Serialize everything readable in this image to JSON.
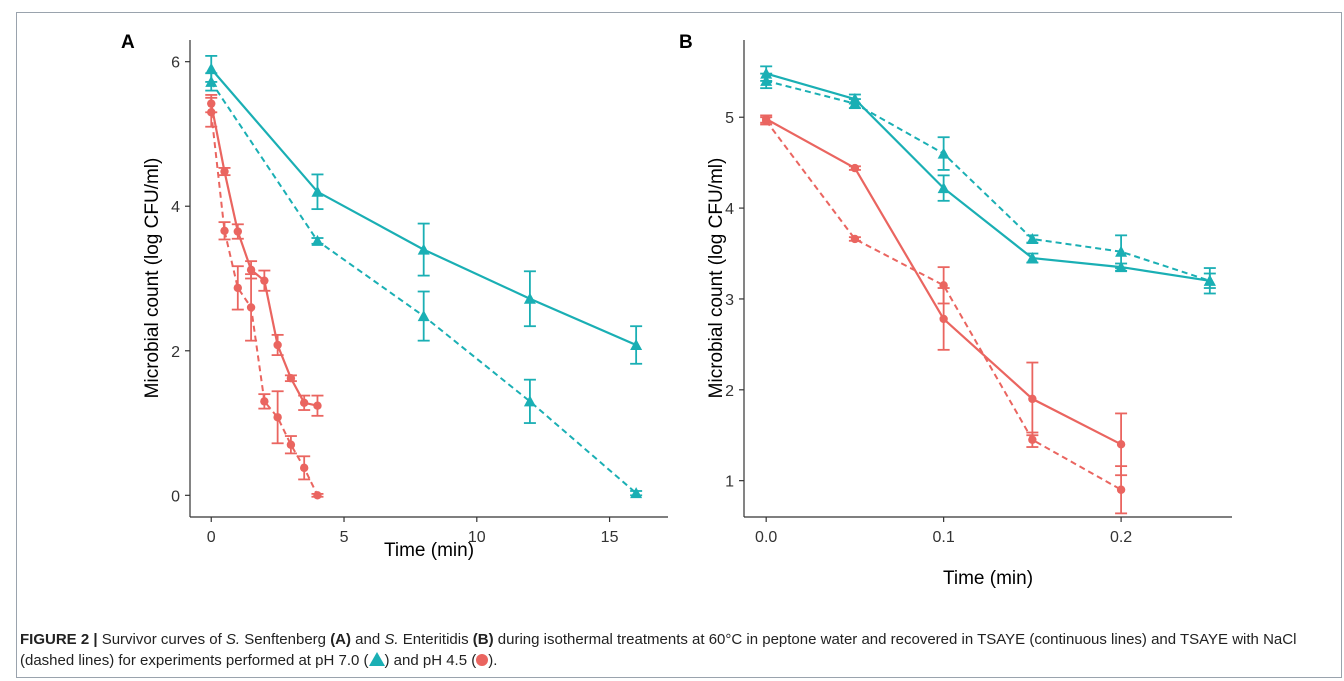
{
  "colors": {
    "ph70": "#1aafb4",
    "ph45": "#ea6560"
  },
  "chart_data": [
    {
      "type": "line",
      "panel": "A",
      "xlabel": "Time (min)",
      "ylabel": "Microbial count (log CFU/ml)",
      "xlim": [
        -0.8,
        17.2
      ],
      "ylim": [
        -0.3,
        6.3
      ],
      "xticks": [
        0,
        5,
        10,
        15
      ],
      "xtick_labels": [
        "0",
        "5",
        "10",
        "15"
      ],
      "yticks": [
        0,
        2,
        4,
        6
      ],
      "ytick_labels": [
        "0",
        "2",
        "4",
        "6"
      ],
      "grid": false,
      "series": [
        {
          "ph": "7.0",
          "medium": "TSAYE",
          "marker": "triangle",
          "dash": false,
          "color": "#1aafb4",
          "x": [
            0,
            4,
            8,
            12,
            16
          ],
          "y": [
            5.9,
            4.2,
            3.4,
            2.72,
            2.08
          ],
          "err": [
            0.18,
            0.24,
            0.36,
            0.38,
            0.26
          ]
        },
        {
          "ph": "7.0",
          "medium": "TSAYE with NaCl",
          "marker": "triangle",
          "dash": true,
          "color": "#1aafb4",
          "x": [
            0,
            4,
            8,
            12,
            16
          ],
          "y": [
            5.72,
            3.52,
            2.48,
            1.3,
            0.03
          ],
          "err": [
            0.12,
            0.04,
            0.34,
            0.3,
            0.03
          ]
        },
        {
          "ph": "4.5",
          "medium": "TSAYE",
          "marker": "circle",
          "dash": false,
          "color": "#ea6560",
          "x": [
            0,
            0.5,
            1,
            1.5,
            2,
            2.5,
            3,
            3.5,
            4
          ],
          "y": [
            5.42,
            4.48,
            3.65,
            3.12,
            2.97,
            2.08,
            1.62,
            1.28,
            1.24
          ],
          "err": [
            0.12,
            0.05,
            0.1,
            0.12,
            0.14,
            0.14,
            0.04,
            0.1,
            0.14
          ]
        },
        {
          "ph": "4.5",
          "medium": "TSAYE with NaCl",
          "marker": "circle",
          "dash": true,
          "color": "#ea6560",
          "x": [
            0,
            0.5,
            1,
            1.5,
            2,
            2.5,
            3,
            3.5,
            4
          ],
          "y": [
            5.3,
            3.66,
            2.87,
            2.6,
            1.3,
            1.08,
            0.7,
            0.38,
            0.0
          ],
          "err": [
            0.2,
            0.12,
            0.3,
            0.46,
            0.1,
            0.36,
            0.12,
            0.16,
            0.02
          ]
        }
      ]
    },
    {
      "type": "line",
      "panel": "B",
      "xlabel": "Time (min)",
      "ylabel": "Microbial count (log CFU/ml)",
      "xlim": [
        -0.0125,
        0.2625
      ],
      "ylim": [
        0.6,
        5.85
      ],
      "xticks": [
        0,
        0.1,
        0.2
      ],
      "xtick_labels": [
        "0.0",
        "0.1",
        "0.2"
      ],
      "yticks": [
        1,
        2,
        3,
        4,
        5
      ],
      "ytick_labels": [
        "1",
        "2",
        "3",
        "4",
        "5"
      ],
      "grid": false,
      "series": [
        {
          "ph": "7.0",
          "medium": "TSAYE",
          "marker": "triangle",
          "dash": false,
          "color": "#1aafb4",
          "x": [
            0,
            0.05,
            0.1,
            0.15,
            0.2,
            0.25
          ],
          "y": [
            5.48,
            5.2,
            4.22,
            3.45,
            3.35,
            3.2
          ],
          "err": [
            0.08,
            0.05,
            0.14,
            0.05,
            0.04,
            0.14
          ]
        },
        {
          "ph": "7.0",
          "medium": "TSAYE with NaCl",
          "marker": "triangle",
          "dash": true,
          "color": "#1aafb4",
          "x": [
            0,
            0.05,
            0.1,
            0.15,
            0.2,
            0.25
          ],
          "y": [
            5.4,
            5.15,
            4.6,
            3.66,
            3.52,
            3.2
          ],
          "err": [
            0.08,
            0.05,
            0.18,
            0.04,
            0.18,
            0.08
          ]
        },
        {
          "ph": "4.5",
          "medium": "TSAYE",
          "marker": "circle",
          "dash": false,
          "color": "#ea6560",
          "x": [
            0,
            0.05,
            0.1,
            0.15,
            0.2
          ],
          "y": [
            4.98,
            4.44,
            2.78,
            1.9,
            1.4
          ],
          "err": [
            0.04,
            0.02,
            0.34,
            0.4,
            0.34
          ]
        },
        {
          "ph": "4.5",
          "medium": "TSAYE with NaCl",
          "marker": "circle",
          "dash": true,
          "color": "#ea6560",
          "x": [
            0,
            0.05,
            0.1,
            0.15,
            0.2
          ],
          "y": [
            4.96,
            3.66,
            3.15,
            1.45,
            0.9
          ],
          "err": [
            0.04,
            0.02,
            0.2,
            0.08,
            0.26
          ]
        }
      ]
    }
  ],
  "caption": {
    "label": "FIGURE 2 |",
    "t1": " Survivor curves of ",
    "sp1": "S.",
    "t2": " Senftenberg ",
    "ref_a": "(A)",
    "t3": " and ",
    "sp2": "S.",
    "t4": " Enteritidis ",
    "ref_b": "(B)",
    "t5": " during isothermal treatments at 60°C in peptone water and recovered in TSAYE (continuous lines) and TSAYE with NaCl (dashed lines) for experiments performed at pH 7.0 (",
    "t6": ") and pH 4.5 (",
    "t7": ")."
  }
}
